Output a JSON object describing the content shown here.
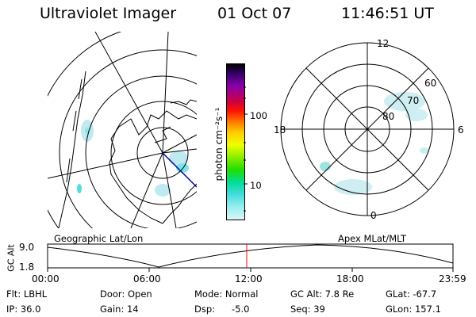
{
  "header": {
    "instrument": "Ultraviolet Imager",
    "date": "01 Oct 07",
    "time": "11:46:51 UT"
  },
  "colorbar": {
    "unit_label": "photon cm⁻²s⁻¹",
    "ticks": [
      "100",
      "10"
    ],
    "colors": [
      "#000000",
      "#330066",
      "#8800aa",
      "#cc0044",
      "#ff1100",
      "#ff7700",
      "#ffcc00",
      "#eeff00",
      "#88ee00",
      "#22dd00",
      "#00dd99",
      "#44dddd",
      "#99eeee",
      "#ddf6f6"
    ]
  },
  "left_panel": {
    "label": "Geographic Lat/Lon"
  },
  "right_panel": {
    "label": "Apex MLat/MLT",
    "mlt_labels": {
      "top": "12",
      "right": "6",
      "bottom": "0",
      "left": "18"
    },
    "lat_labels": [
      "60",
      "70",
      "80"
    ]
  },
  "altitude_plot": {
    "ylabel": "GC Alt",
    "yticks": [
      "9.0",
      "1.8"
    ],
    "xticks": [
      "00:00",
      "06:00",
      "12:00",
      "18:00",
      "23:59"
    ],
    "current_time_marker_color": "#ff0000"
  },
  "footer": {
    "flt": "Flt: LBHL",
    "ip": "IP: 36.0",
    "door": "Door: Open",
    "gain": "Gain: 14",
    "mode": "Mode: Normal",
    "dsp_label": "Dsp:",
    "dsp_value": "-5.0",
    "gc_alt": "GC Alt: 7.8 Re",
    "seq": "Seq: 39",
    "glat": "GLat: -67.7",
    "glon": "GLon: 157.1"
  }
}
